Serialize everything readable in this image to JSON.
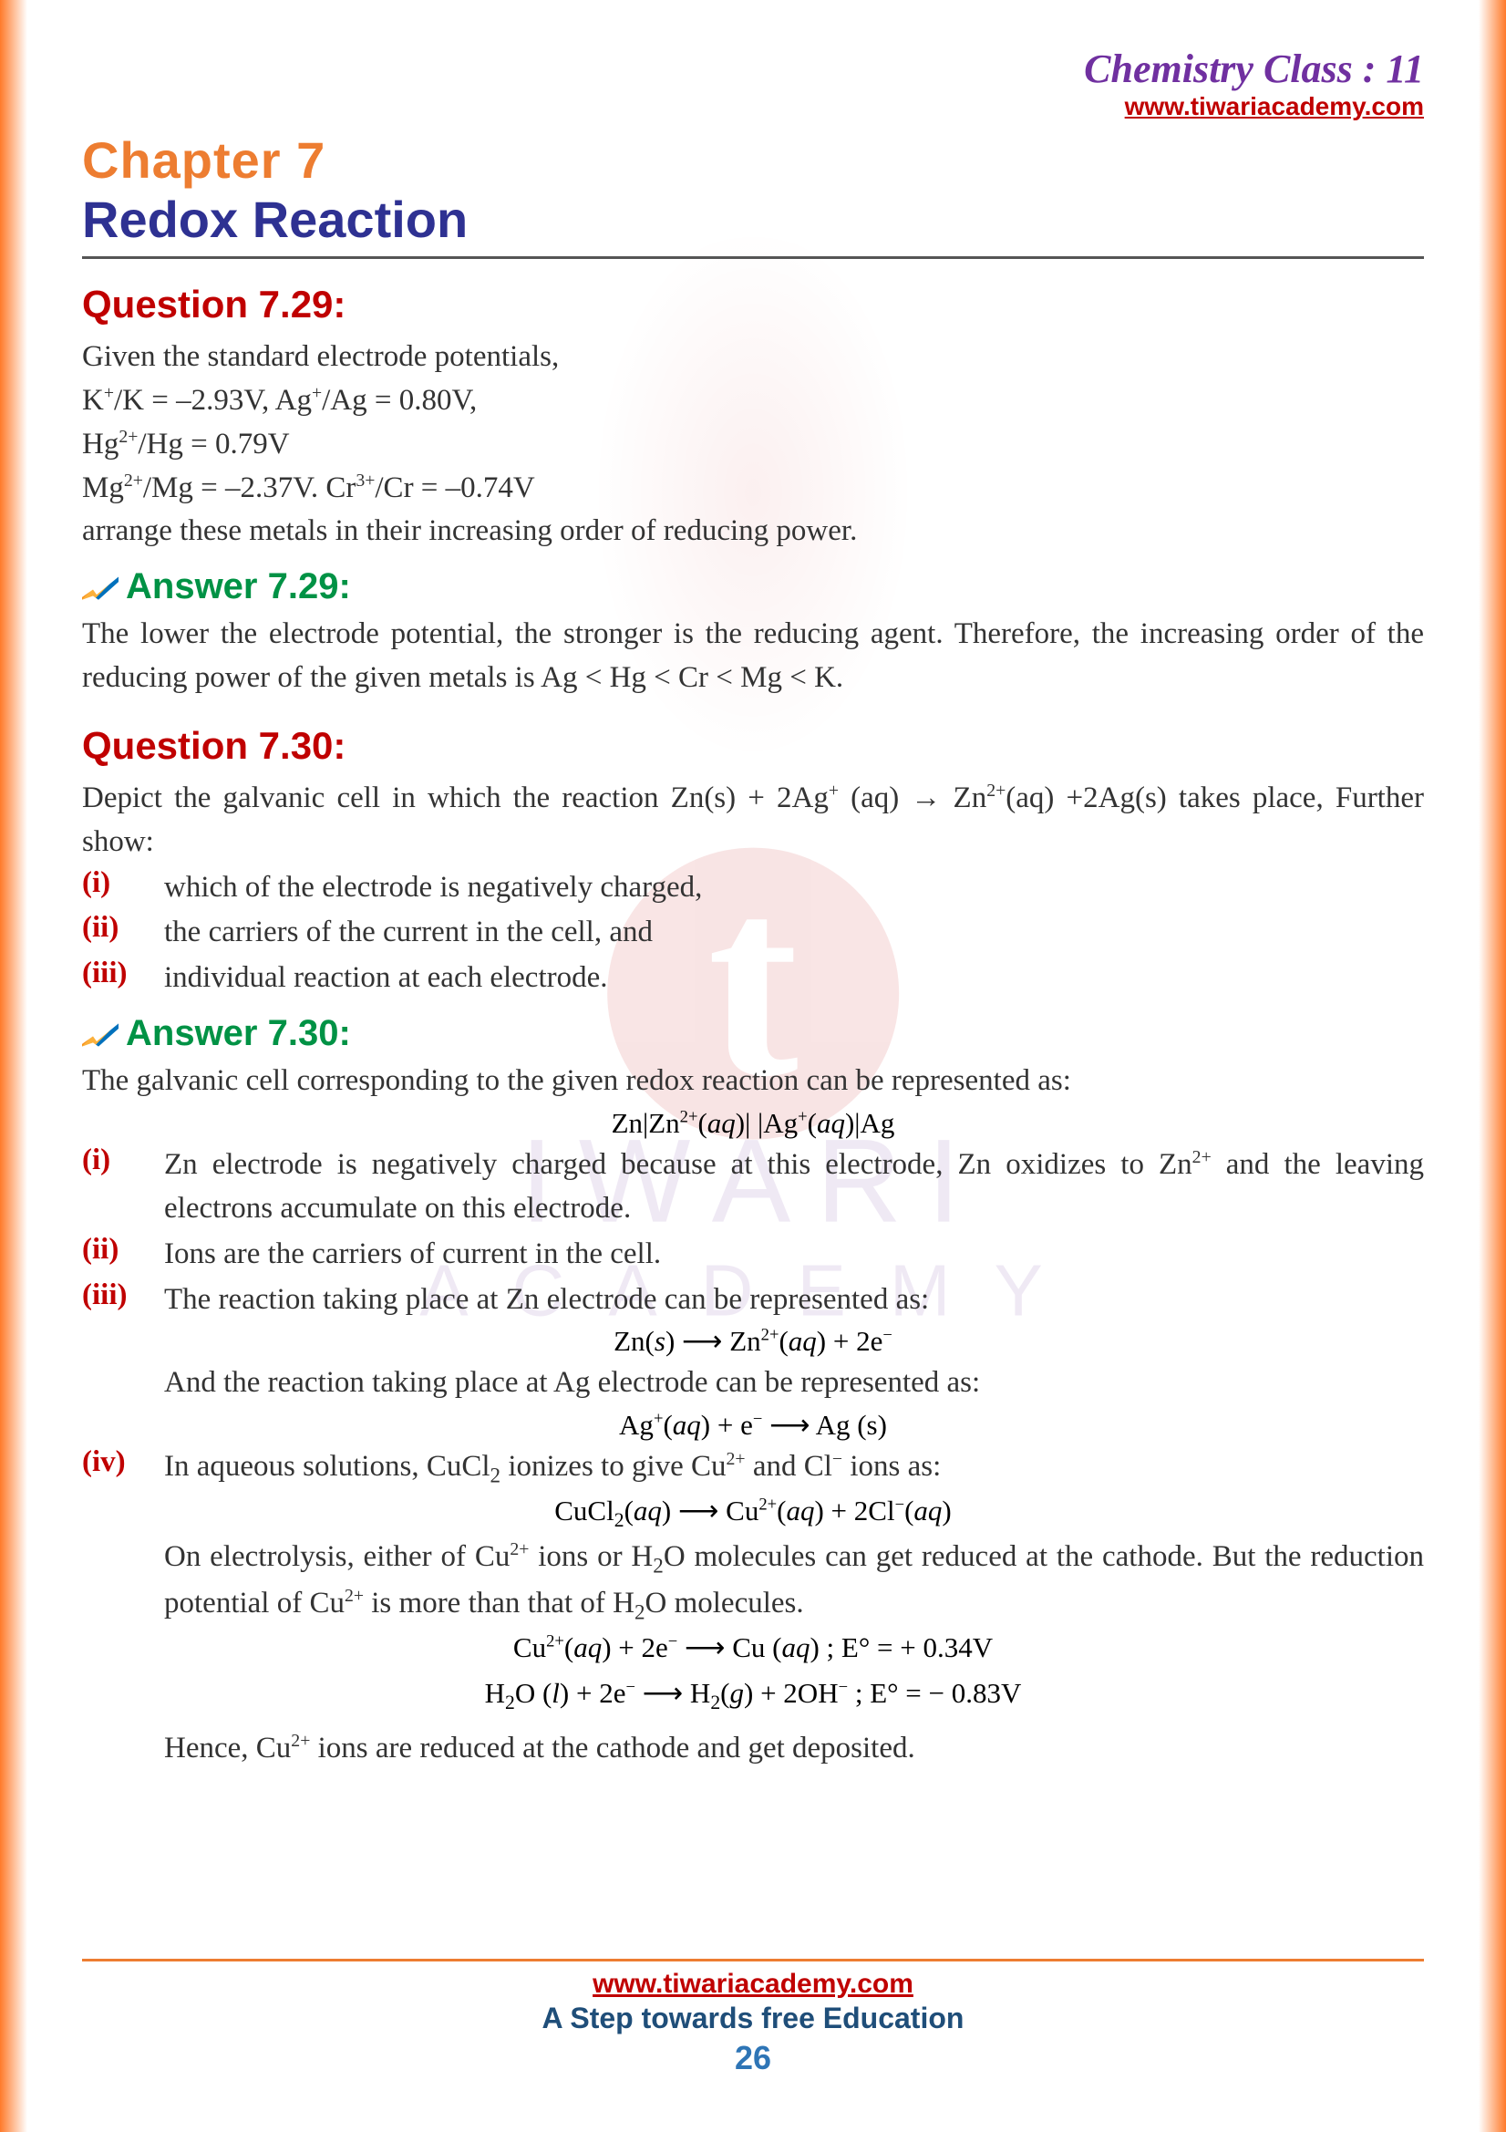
{
  "header": {
    "class_title": "Chemistry Class : 11",
    "site": "www.tiwariacademy.com"
  },
  "chapter": {
    "label": "Chapter  7",
    "title": "Redox Reaction"
  },
  "q29": {
    "label": "Question 7.29:",
    "line1": "Given the standard electrode potentials,",
    "line2_html": "K<sup>+</sup>/K = –2.93V, Ag<sup>+</sup>/Ag = 0.80V,",
    "line3_html": "Hg<sup>2+</sup>/Hg = 0.79V",
    "line4_html": "Mg<sup>2+</sup>/Mg = –2.37V. Cr<sup>3+</sup>/Cr = –0.74V",
    "line5": "arrange these metals in their increasing order of reducing power.",
    "answer_label": "Answer 7.29:",
    "answer": "The lower the electrode potential, the stronger is the reducing agent. Therefore, the increasing order of the reducing power of the given metals is Ag < Hg < Cr < Mg < K."
  },
  "q30": {
    "label": "Question 7.30:",
    "intro_html": "Depict the galvanic cell in which the reaction Zn(s) + 2Ag<sup>+</sup> (aq) → Zn<sup>2+</sup>(aq) +2Ag(s) takes place, Further show:",
    "parts": [
      {
        "num": "(i)",
        "text": "which of the electrode is negatively charged,"
      },
      {
        "num": "(ii)",
        "text": "the carriers of the current in the cell, and"
      },
      {
        "num": "(iii)",
        "text": "individual reaction at each electrode."
      }
    ],
    "answer_label": "Answer 7.30:",
    "ans_intro": "The galvanic cell corresponding to the given redox reaction can be represented as:",
    "eq_cell": "Zn|Zn<sup>2+</sup>(<i>aq</i>)| |Ag<sup>+</sup>(<i>aq</i>)|Ag",
    "ans_parts": [
      {
        "num": "(i)",
        "html": "Zn electrode is negatively charged because at this electrode, Zn oxidizes to Zn<sup>2+</sup> and the leaving electrons accumulate on this electrode."
      },
      {
        "num": "(ii)",
        "html": "Ions are the carriers of current in the cell."
      },
      {
        "num": "(iii)",
        "html": "The reaction taking place at Zn electrode can be represented as:"
      }
    ],
    "eq_zn": "Zn(<i>s</i>) ⟶ Zn<sup>2+</sup>(<i>aq</i>) + 2e<sup>−</sup>",
    "ag_intro": "And the reaction taking place at Ag electrode can be represented as:",
    "eq_ag": "Ag<sup>+</sup>(<i>aq</i>) + e<sup>−</sup> ⟶ Ag (s)",
    "iv": {
      "num": "(iv)",
      "html": "In aqueous solutions, CuCl<sub>2</sub> ionizes to give Cu<sup>2+</sup> and Cl<sup>−</sup> ions as:"
    },
    "eq_cucl2": "CuCl<sub>2</sub>(<i>aq</i>) ⟶ Cu<sup>2+</sup>(<i>aq</i>) + 2Cl<sup>−</sup>(<i>aq</i>)",
    "electrolysis_html": "On electrolysis, either of Cu<sup>2+</sup> ions or H<sub>2</sub>O molecules can get reduced at the cathode. But the reduction potential of Cu<sup>2+</sup> is more than that of H<sub>2</sub>O molecules.",
    "eq_cu": "Cu<sup>2+</sup>(<i>aq</i>) + 2e<sup>−</sup> ⟶ Cu  (<i>aq</i>) ; E° = + 0.34V",
    "eq_h2o": "H<sub>2</sub>O (<i>l</i>) + 2e<sup>−</sup> ⟶ H<sub>2</sub>(<i>g</i>) + 2OH<sup>−</sup> ; E° =  − 0.83V",
    "conclusion_html": "Hence, Cu<sup>2+</sup> ions are reduced at the cathode and get deposited."
  },
  "footer": {
    "link": "www.tiwariacademy.com",
    "tag": "A Step towards free Education",
    "page": "26"
  },
  "colors": {
    "orange": "#ed7d31",
    "purple": "#7030a0",
    "red": "#c00000",
    "navy": "#2e3192",
    "green": "#009245",
    "footer_blue": "#1f4e79",
    "pagenum_blue": "#2e75b6"
  }
}
